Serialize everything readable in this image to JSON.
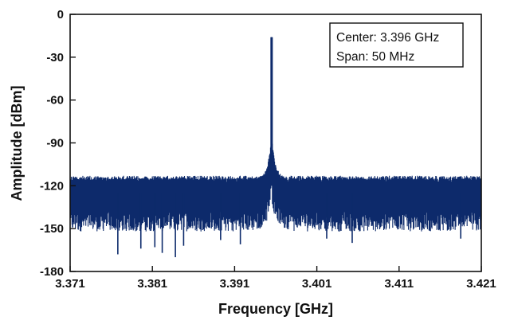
{
  "chart_data": {
    "type": "line",
    "title": "",
    "xlabel": "Frequency [GHz]",
    "ylabel": "Amplitude [dBm]",
    "xlim": [
      3.371,
      3.421
    ],
    "ylim": [
      -180,
      0
    ],
    "x_ticks": [
      "3.371",
      "3.381",
      "3.391",
      "3.401",
      "3.411",
      "3.421"
    ],
    "y_ticks": [
      "0",
      "-30",
      "-60",
      "-90",
      "-120",
      "-150",
      "-180"
    ],
    "grid": false,
    "legend": "none",
    "series_color": "#0d2a6b",
    "annotation": {
      "center_text": "Center: 3.396 GHz",
      "span_text": "Span: 50 MHz"
    },
    "series": [
      {
        "peak_frequency": 3.3955,
        "peak_amplitude": -16,
        "noise_floor_top": -113,
        "noise_floor_bottom": -145,
        "noise_dips": [
          {
            "x": 3.3768,
            "y": -168
          },
          {
            "x": 3.3796,
            "y": -164
          },
          {
            "x": 3.3813,
            "y": -163
          },
          {
            "x": 3.3822,
            "y": -167
          },
          {
            "x": 3.3838,
            "y": -170
          },
          {
            "x": 3.3848,
            "y": -162
          },
          {
            "x": 3.3893,
            "y": -158
          },
          {
            "x": 3.3917,
            "y": -161
          },
          {
            "x": 3.4022,
            "y": -157
          },
          {
            "x": 3.4053,
            "y": -160
          },
          {
            "x": 3.4185,
            "y": -157
          }
        ]
      }
    ]
  }
}
